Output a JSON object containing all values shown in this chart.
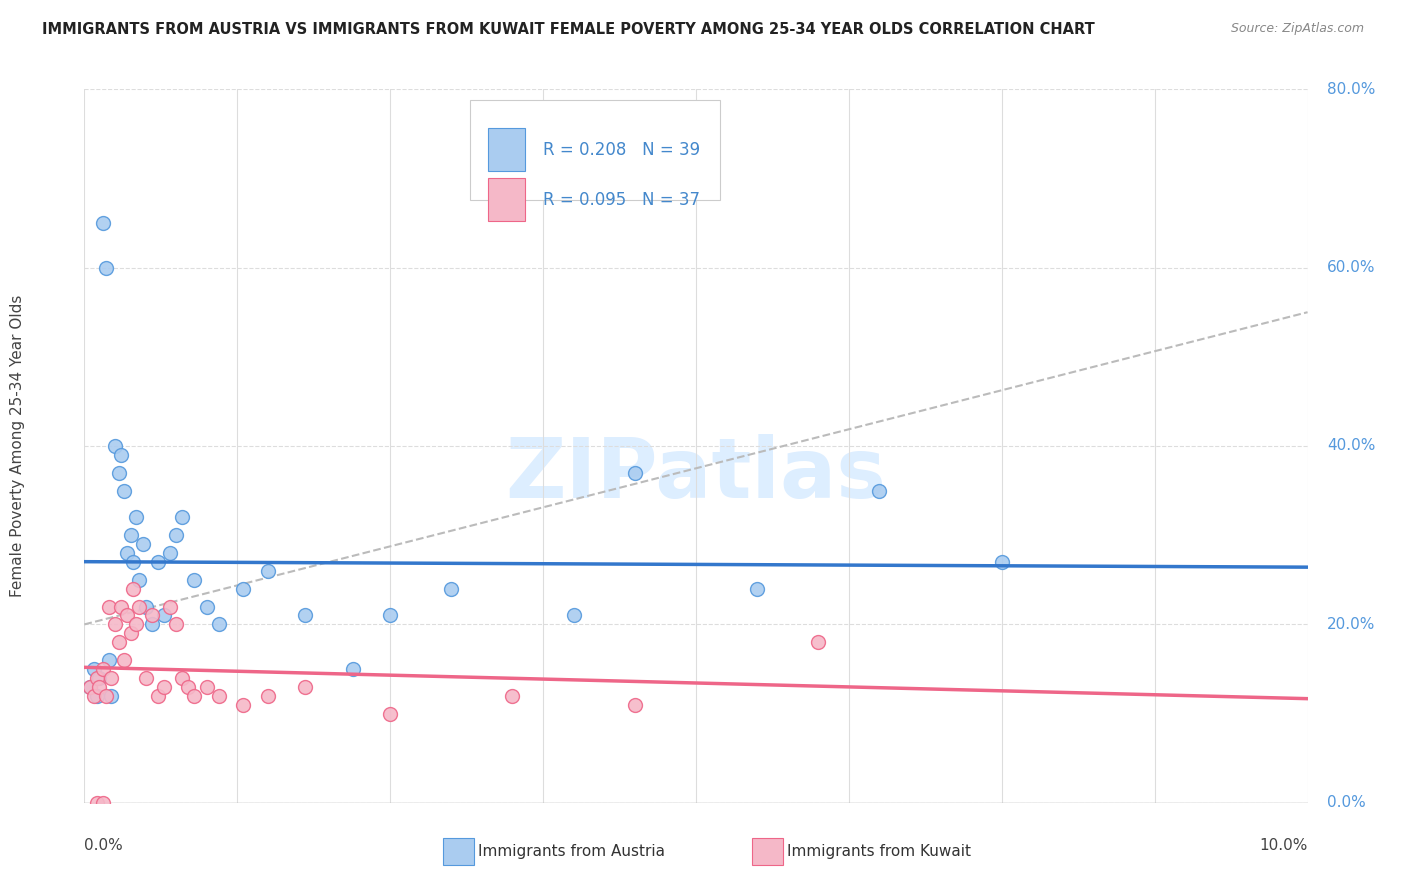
{
  "title": "IMMIGRANTS FROM AUSTRIA VS IMMIGRANTS FROM KUWAIT FEMALE POVERTY AMONG 25-34 YEAR OLDS CORRELATION CHART",
  "source": "Source: ZipAtlas.com",
  "ylabel": "Female Poverty Among 25-34 Year Olds",
  "xlim": [
    0,
    10
  ],
  "ylim": [
    0,
    80
  ],
  "austria_color": "#aaccf0",
  "austria_edge_color": "#5599dd",
  "austria_line_color": "#3377cc",
  "kuwait_color": "#f5b8c8",
  "kuwait_edge_color": "#ee6688",
  "kuwait_line_color": "#ee6688",
  "dashed_color": "#bbbbbb",
  "austria_R": 0.208,
  "austria_N": 39,
  "kuwait_R": 0.095,
  "kuwait_N": 37,
  "watermark": "ZIPatlas",
  "watermark_color": "#ddeeff",
  "grid_color": "#dddddd",
  "ytick_color": "#5599dd",
  "austria_x": [
    0.05,
    0.08,
    0.1,
    0.12,
    0.15,
    0.18,
    0.2,
    0.22,
    0.25,
    0.28,
    0.3,
    0.32,
    0.35,
    0.38,
    0.4,
    0.42,
    0.45,
    0.48,
    0.5,
    0.55,
    0.6,
    0.65,
    0.7,
    0.75,
    0.8,
    0.9,
    1.0,
    1.1,
    1.3,
    1.5,
    1.8,
    2.2,
    2.5,
    3.0,
    4.0,
    4.5,
    5.5,
    6.5,
    7.5
  ],
  "austria_y": [
    13,
    15,
    12,
    14,
    65,
    60,
    16,
    12,
    40,
    37,
    39,
    35,
    28,
    30,
    27,
    32,
    25,
    29,
    22,
    20,
    27,
    21,
    28,
    30,
    32,
    25,
    22,
    20,
    24,
    26,
    21,
    15,
    21,
    24,
    21,
    37,
    24,
    35,
    27
  ],
  "kuwait_x": [
    0.05,
    0.08,
    0.1,
    0.12,
    0.15,
    0.18,
    0.2,
    0.22,
    0.25,
    0.28,
    0.3,
    0.32,
    0.35,
    0.38,
    0.4,
    0.42,
    0.45,
    0.5,
    0.55,
    0.6,
    0.65,
    0.7,
    0.75,
    0.8,
    0.85,
    0.9,
    1.0,
    1.1,
    1.3,
    1.5,
    1.8,
    2.5,
    3.5,
    4.5,
    6.0,
    0.1,
    0.15
  ],
  "kuwait_y": [
    13,
    12,
    14,
    13,
    15,
    12,
    22,
    14,
    20,
    18,
    22,
    16,
    21,
    19,
    24,
    20,
    22,
    14,
    21,
    12,
    13,
    22,
    20,
    14,
    13,
    12,
    13,
    12,
    11,
    12,
    13,
    10,
    12,
    11,
    18,
    0,
    0
  ]
}
